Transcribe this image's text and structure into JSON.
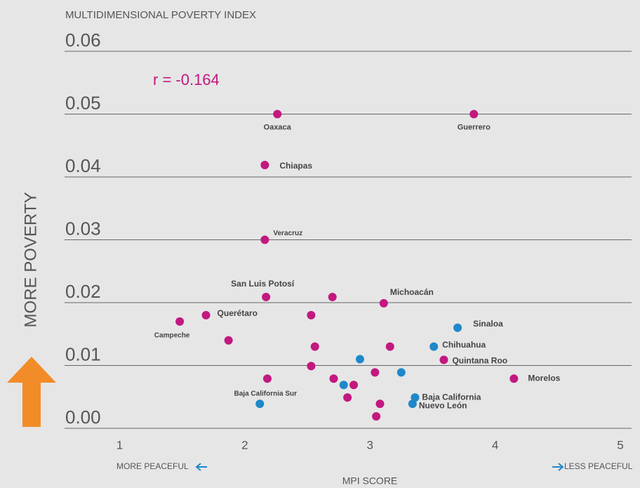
{
  "chart_data": {
    "type": "scatter",
    "title": "MULTIDIMENSIONAL POVERTY INDEX",
    "y_label": "MORE POVERTY",
    "x_label": "MPI SCORE",
    "x_left_note": "MORE PEACEFUL",
    "x_right_note": "LESS PEACEFUL",
    "annotation": "r = -0.164",
    "xlim": [
      0.56,
      5.09
    ],
    "ylim": [
      0,
      0.06
    ],
    "xticks": [
      1,
      2,
      3,
      4,
      5
    ],
    "yticks": [
      {
        "value": 0,
        "label": "0.00"
      },
      0.01,
      0.02,
      0.03,
      0.04,
      0.05,
      0.06
    ],
    "grid": true,
    "points": [
      {
        "x": 2.26,
        "y": 0.05,
        "color": "#c2187f",
        "label": "Oaxaca"
      },
      {
        "x": 3.83,
        "y": 0.05,
        "color": "#c2187f",
        "label": "Guerrero"
      },
      {
        "x": 2.16,
        "y": 0.0419,
        "color": "#c2187f",
        "label": "Chiapas"
      },
      {
        "x": 2.16,
        "y": 0.03,
        "color": "#c2187f",
        "label": "Veracruz"
      },
      {
        "x": 2.17,
        "y": 0.0209,
        "color": "#c2187f",
        "label": "San Luis Potosí"
      },
      {
        "x": 2.7,
        "y": 0.0209,
        "color": "#c2187f"
      },
      {
        "x": 3.11,
        "y": 0.0199,
        "color": "#c2187f",
        "label": "Michoacán"
      },
      {
        "x": 1.69,
        "y": 0.018,
        "color": "#c2187f",
        "label": "Querétaro"
      },
      {
        "x": 1.48,
        "y": 0.017,
        "color": "#c2187f",
        "label": "Campeche"
      },
      {
        "x": 2.53,
        "y": 0.018,
        "color": "#c2187f"
      },
      {
        "x": 1.87,
        "y": 0.014,
        "color": "#c2187f"
      },
      {
        "x": 2.56,
        "y": 0.013,
        "color": "#c2187f"
      },
      {
        "x": 3.16,
        "y": 0.013,
        "color": "#c2187f"
      },
      {
        "x": 2.53,
        "y": 0.0099,
        "color": "#c2187f"
      },
      {
        "x": 2.18,
        "y": 0.0079,
        "color": "#c2187f"
      },
      {
        "x": 2.71,
        "y": 0.0079,
        "color": "#c2187f"
      },
      {
        "x": 3.04,
        "y": 0.0089,
        "color": "#c2187f"
      },
      {
        "x": 3.59,
        "y": 0.0109,
        "color": "#c2187f",
        "label": "Quintana Roo"
      },
      {
        "x": 4.15,
        "y": 0.0079,
        "color": "#c2187f",
        "label": "Morelos"
      },
      {
        "x": 2.87,
        "y": 0.0069,
        "color": "#c2187f"
      },
      {
        "x": 2.82,
        "y": 0.0049,
        "color": "#c2187f"
      },
      {
        "x": 3.08,
        "y": 0.0039,
        "color": "#c2187f"
      },
      {
        "x": 3.05,
        "y": 0.0019,
        "color": "#c2187f"
      },
      {
        "x": 3.7,
        "y": 0.016,
        "color": "#1f88c9",
        "label": "Sinaloa"
      },
      {
        "x": 3.51,
        "y": 0.013,
        "color": "#1f88c9",
        "label": "Chihuahua"
      },
      {
        "x": 2.92,
        "y": 0.011,
        "color": "#1f88c9"
      },
      {
        "x": 3.25,
        "y": 0.0089,
        "color": "#1f88c9"
      },
      {
        "x": 2.79,
        "y": 0.0069,
        "color": "#1f88c9"
      },
      {
        "x": 3.36,
        "y": 0.0049,
        "color": "#1f88c9",
        "label": "Baja California"
      },
      {
        "x": 3.34,
        "y": 0.0039,
        "color": "#1f88c9",
        "label": "Nuevo León"
      },
      {
        "x": 2.12,
        "y": 0.0039,
        "color": "#1f88c9",
        "label": "Baja California Sur"
      }
    ]
  }
}
